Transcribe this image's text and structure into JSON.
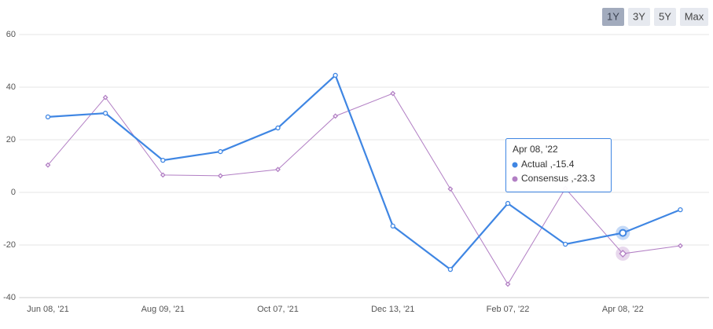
{
  "chart_data": {
    "type": "line",
    "categories": [
      "Jun 08, '21",
      null,
      "Aug 09, '21",
      null,
      "Oct 07, '21",
      null,
      "Dec 13, '21",
      null,
      "Feb 07, '22",
      null,
      "Apr 08, '22",
      null
    ],
    "series": [
      {
        "name": "Actual",
        "color": "#3f86e3",
        "values": [
          28.7,
          30.1,
          12.2,
          15.5,
          24.5,
          44.5,
          -12.8,
          -29.3,
          -4.2,
          -19.7,
          -15.4,
          -6.6
        ]
      },
      {
        "name": "Consensus",
        "color": "#b27fc4",
        "values": [
          10.4,
          36.1,
          6.6,
          6.3,
          8.7,
          29,
          37.6,
          1.3,
          -34.9,
          1.5,
          -23.3,
          -20.3
        ]
      }
    ],
    "ylim": [
      -40,
      60
    ],
    "yticks": [
      -40,
      -20,
      0,
      20,
      40,
      60
    ],
    "grid": true,
    "tooltip": {
      "title": "Apr 08, '22",
      "lines": [
        "Actual ,-15.4",
        "Consensus ,-23.3"
      ],
      "index": 10
    },
    "range_buttons": [
      "1Y",
      "3Y",
      "5Y",
      "Max"
    ],
    "selected_button": 0
  }
}
